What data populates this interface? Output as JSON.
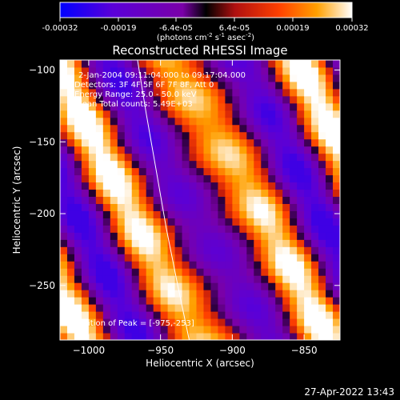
{
  "chart_data": {
    "type": "heatmap",
    "title": "Reconstructed RHESSI Image",
    "xlabel": "Heliocentric X (arcsec)",
    "ylabel": "Heliocentric Y (arcsec)",
    "xlim": [
      -1020,
      -825
    ],
    "ylim": [
      -288,
      -93
    ],
    "x_ticks": [
      -1000,
      -950,
      -900,
      -850
    ],
    "y_ticks": [
      -100,
      -150,
      -200,
      -250
    ],
    "x_tick_labels": [
      "−1000",
      "−950",
      "−900",
      "−850"
    ],
    "y_tick_labels": [
      "−100",
      "−150",
      "−200",
      "−250"
    ],
    "colorbar": {
      "range": [
        -0.00032,
        0.00032
      ],
      "tick_labels": [
        "-0.00032",
        "-0.00019",
        "-6.4e-05",
        "6.4e-05",
        "0.00019",
        "0.00032"
      ],
      "units_html": "(photons cm<tspan dy=\"-4\" font-size=\"7\">-2</tspan><tspan dy=\"4\"> s</tspan><tspan dy=\"-4\" font-size=\"7\">-1</tspan><tspan dy=\"4\"> asec</tspan><tspan dy=\"-4\" font-size=\"7\">-2</tspan><tspan dy=\"4\">)</tspan>",
      "colors": [
        "#0000ff",
        "#5a00d8",
        "#7a00a8",
        "#000000",
        "#b01010",
        "#ff4000",
        "#ffa000",
        "#ffffff"
      ]
    },
    "annotations": [
      "2-Jan-2004 09:11:04.000 to 09:17:04.000",
      "Detectors: 3F 4F 5F 6F 7F 8F, Att 0",
      "Energy Range: 25.0 - 50.0 keV",
      "Clean     Total counts: 5.49E+03"
    ],
    "peak_label": "Position of Peak = [-975,-253]",
    "peak": [
      -975,
      -253
    ],
    "limb_curve": [
      [
        -966,
        -93
      ],
      [
        -960,
        -130
      ],
      [
        -953,
        -170
      ],
      [
        -946,
        -210
      ],
      [
        -938,
        -250
      ],
      [
        -930,
        -288
      ]
    ]
  },
  "footer": {
    "timestamp": "27-Apr-2022 13:43"
  }
}
